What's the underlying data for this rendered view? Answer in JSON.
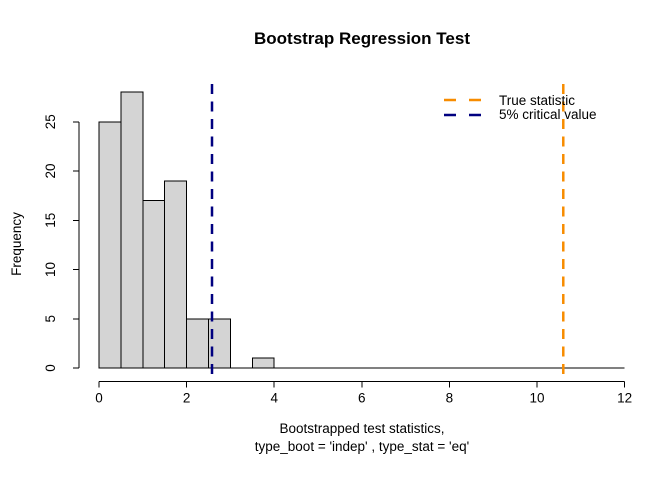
{
  "figure": {
    "background": "#FFFFFF",
    "text_color": "#000000"
  },
  "chart_data": {
    "type": "bar",
    "subtype": "histogram",
    "title": "Bootstrap Regression Test",
    "ylabel": "Frequency",
    "xlabel_line1": "Bootstrapped test statistics,",
    "xlabel_line2": "type_boot = 'indep' , type_stat = 'eq'",
    "bin_start": 0,
    "bin_width": 0.5,
    "counts": [
      25,
      28,
      17,
      19,
      5,
      5,
      0,
      1,
      0,
      0,
      0,
      0,
      0,
      0,
      0,
      0,
      0,
      0,
      0,
      0,
      0,
      0,
      0,
      0
    ],
    "xlim": [
      0,
      12
    ],
    "ylim": [
      0,
      28
    ],
    "x_ticks": [
      0,
      2,
      4,
      6,
      8,
      10,
      12
    ],
    "y_ticks": [
      0,
      5,
      10,
      15,
      20,
      25
    ],
    "bar_fill": "#D4D4D4",
    "bar_stroke": "#000000",
    "axis_color": "#000000",
    "grid": false,
    "legend_position": "top-right",
    "legend_box": false,
    "vlines": [
      {
        "name": "true-statistic",
        "value": 10.6,
        "color": "#F78C00",
        "style": "dashed",
        "label": "True statistic"
      },
      {
        "name": "critical-value",
        "value": 2.58,
        "color": "#000080",
        "style": "dashed",
        "label": "5% critical value"
      }
    ]
  }
}
